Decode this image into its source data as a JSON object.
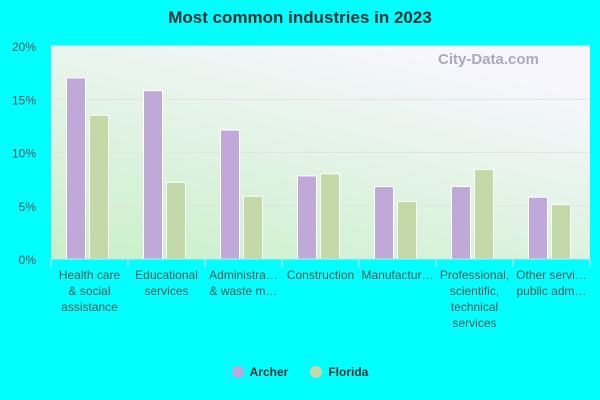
{
  "chart_data": {
    "type": "bar",
    "title": "Most common industries in 2023",
    "categories": [
      [
        "Health care",
        "& social",
        "assistance"
      ],
      [
        "Educational",
        "services"
      ],
      [
        "Administra…",
        "& waste m…"
      ],
      [
        "Construction"
      ],
      [
        "Manufactur…"
      ],
      [
        "Professional,",
        "scientific,",
        "technical",
        "services"
      ],
      [
        "Other servi…",
        "public adm…"
      ]
    ],
    "series": [
      {
        "name": "Archer",
        "color": "#c0a8d8",
        "values": [
          17.0,
          15.8,
          12.1,
          7.8,
          6.8,
          6.8,
          5.8
        ]
      },
      {
        "name": "Florida",
        "color": "#c4d9a8",
        "values": [
          13.5,
          7.2,
          5.9,
          8.0,
          5.4,
          8.4,
          5.1
        ]
      }
    ],
    "yticks": [
      "0%",
      "5%",
      "10%",
      "15%",
      "20%"
    ],
    "ylim": [
      0,
      20
    ],
    "grid": true,
    "legend": "bottom"
  },
  "watermark": "City-Data.com"
}
